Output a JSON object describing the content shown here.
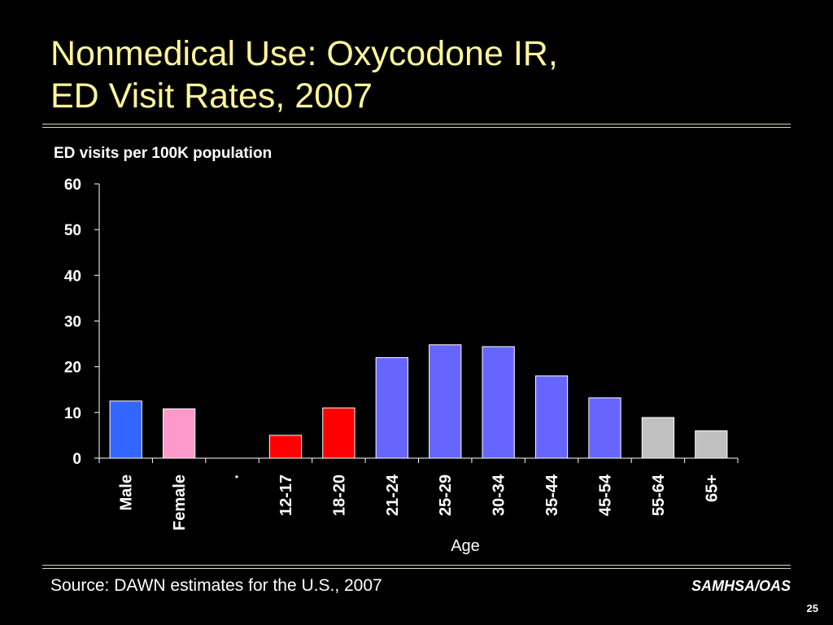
{
  "slide": {
    "title_line1": "Nonmedical Use:  Oxycodone IR,",
    "title_line2": "ED Visit Rates, 2007",
    "source": "Source:  DAWN estimates for the U.S., 2007",
    "org": "SAMHSA/OAS",
    "page_number": "25"
  },
  "chart_data": {
    "type": "bar",
    "ylabel": "ED visits per 100K population",
    "xlabel": "Age",
    "ylim": [
      0,
      60
    ],
    "yticks": [
      0,
      10,
      20,
      30,
      40,
      50,
      60
    ],
    "grid": false,
    "legend": "none",
    "categories": [
      "Male",
      "Female",
      ".",
      "12-17",
      "18-20",
      "21-24",
      "25-29",
      "30-34",
      "35-44",
      "45-54",
      "55-64",
      "65+"
    ],
    "values": [
      12.5,
      10.8,
      null,
      5.0,
      11.0,
      22.0,
      24.8,
      24.4,
      18.0,
      13.2,
      8.9,
      6.0
    ],
    "colors": [
      "#3366ff",
      "#ff99cc",
      "#000000",
      "#ff0000",
      "#ff0000",
      "#6666ff",
      "#6666ff",
      "#6666ff",
      "#6666ff",
      "#6666ff",
      "#c0c0c0",
      "#c0c0c0"
    ]
  }
}
